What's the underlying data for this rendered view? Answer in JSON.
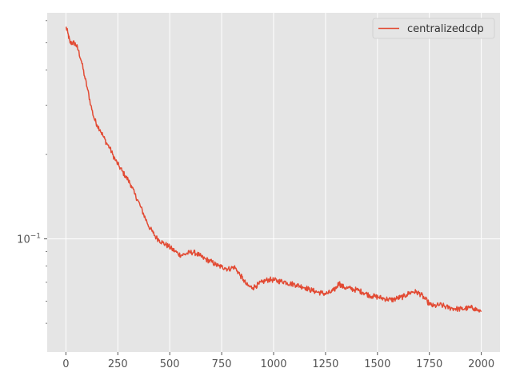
{
  "chart_data": {
    "type": "line",
    "title": "",
    "xlabel": "",
    "ylabel": "",
    "xlim": [
      -90,
      2090
    ],
    "ylim": [
      0.0395,
      0.64
    ],
    "yscale": "log",
    "grid": true,
    "background": "#e5e5e5",
    "legend": {
      "placement": "top-right",
      "entries": [
        "centralizedcdp"
      ]
    },
    "x_ticks": [
      {
        "value": 0,
        "label": "0"
      },
      {
        "value": 250,
        "label": "250"
      },
      {
        "value": 500,
        "label": "500"
      },
      {
        "value": 750,
        "label": "750"
      },
      {
        "value": 1000,
        "label": "1000"
      },
      {
        "value": 1250,
        "label": "1250"
      },
      {
        "value": 1500,
        "label": "1500"
      },
      {
        "value": 1750,
        "label": "1750"
      },
      {
        "value": 2000,
        "label": "2000"
      }
    ],
    "y_major_ticks": [
      {
        "value": 0.1,
        "label": "10",
        "exponent": "−1"
      }
    ],
    "y_minor_ticks": [
      0.05,
      0.06,
      0.07,
      0.08,
      0.09,
      0.2,
      0.3,
      0.4,
      0.5,
      0.6
    ],
    "series": [
      {
        "name": "centralizedcdp",
        "color": "#e24a33",
        "points": [
          [
            0,
            0.57
          ],
          [
            10,
            0.54
          ],
          [
            20,
            0.5
          ],
          [
            30,
            0.5
          ],
          [
            40,
            0.5
          ],
          [
            50,
            0.49
          ],
          [
            60,
            0.47
          ],
          [
            75,
            0.43
          ],
          [
            90,
            0.38
          ],
          [
            105,
            0.34
          ],
          [
            120,
            0.3
          ],
          [
            135,
            0.27
          ],
          [
            150,
            0.255
          ],
          [
            165,
            0.245
          ],
          [
            180,
            0.232
          ],
          [
            195,
            0.22
          ],
          [
            210,
            0.212
          ],
          [
            225,
            0.2
          ],
          [
            240,
            0.19
          ],
          [
            255,
            0.182
          ],
          [
            270,
            0.175
          ],
          [
            285,
            0.168
          ],
          [
            300,
            0.162
          ],
          [
            315,
            0.155
          ],
          [
            330,
            0.145
          ],
          [
            345,
            0.138
          ],
          [
            360,
            0.13
          ],
          [
            375,
            0.122
          ],
          [
            390,
            0.115
          ],
          [
            405,
            0.109
          ],
          [
            420,
            0.105
          ],
          [
            435,
            0.101
          ],
          [
            450,
            0.099
          ],
          [
            465,
            0.097
          ],
          [
            480,
            0.0955
          ],
          [
            495,
            0.094
          ],
          [
            510,
            0.092
          ],
          [
            525,
            0.0905
          ],
          [
            540,
            0.0885
          ],
          [
            555,
            0.0875
          ],
          [
            570,
            0.088
          ],
          [
            585,
            0.0888
          ],
          [
            600,
            0.0895
          ],
          [
            615,
            0.0895
          ],
          [
            630,
            0.0885
          ],
          [
            645,
            0.087
          ],
          [
            660,
            0.0855
          ],
          [
            675,
            0.0845
          ],
          [
            690,
            0.0835
          ],
          [
            705,
            0.0825
          ],
          [
            720,
            0.081
          ],
          [
            735,
            0.08
          ],
          [
            750,
            0.0795
          ],
          [
            765,
            0.079
          ],
          [
            780,
            0.078
          ],
          [
            795,
            0.0785
          ],
          [
            810,
            0.0795
          ],
          [
            825,
            0.077
          ],
          [
            840,
            0.074
          ],
          [
            855,
            0.0715
          ],
          [
            870,
            0.0685
          ],
          [
            885,
            0.0675
          ],
          [
            900,
            0.067
          ],
          [
            915,
            0.068
          ],
          [
            930,
            0.069
          ],
          [
            945,
            0.07
          ],
          [
            960,
            0.071
          ],
          [
            975,
            0.0715
          ],
          [
            990,
            0.0715
          ],
          [
            1005,
            0.0712
          ],
          [
            1020,
            0.0708
          ],
          [
            1035,
            0.0705
          ],
          [
            1050,
            0.0705
          ],
          [
            1065,
            0.0698
          ],
          [
            1080,
            0.0692
          ],
          [
            1095,
            0.069
          ],
          [
            1110,
            0.0685
          ],
          [
            1125,
            0.068
          ],
          [
            1140,
            0.0675
          ],
          [
            1155,
            0.067
          ],
          [
            1170,
            0.066
          ],
          [
            1185,
            0.0655
          ],
          [
            1200,
            0.065
          ],
          [
            1215,
            0.0645
          ],
          [
            1230,
            0.0642
          ],
          [
            1245,
            0.0638
          ],
          [
            1260,
            0.064
          ],
          [
            1275,
            0.0645
          ],
          [
            1290,
            0.0655
          ],
          [
            1305,
            0.0675
          ],
          [
            1315,
            0.07
          ],
          [
            1325,
            0.068
          ],
          [
            1340,
            0.0672
          ],
          [
            1355,
            0.0668
          ],
          [
            1370,
            0.0665
          ],
          [
            1385,
            0.066
          ],
          [
            1400,
            0.0658
          ],
          [
            1415,
            0.0652
          ],
          [
            1430,
            0.0645
          ],
          [
            1445,
            0.0638
          ],
          [
            1460,
            0.063
          ],
          [
            1475,
            0.0625
          ],
          [
            1490,
            0.0622
          ],
          [
            1505,
            0.062
          ],
          [
            1520,
            0.0615
          ],
          [
            1535,
            0.0612
          ],
          [
            1550,
            0.061
          ],
          [
            1565,
            0.0606
          ],
          [
            1580,
            0.0608
          ],
          [
            1595,
            0.0614
          ],
          [
            1610,
            0.0618
          ],
          [
            1625,
            0.0622
          ],
          [
            1640,
            0.0632
          ],
          [
            1655,
            0.0642
          ],
          [
            1670,
            0.0648
          ],
          [
            1685,
            0.0646
          ],
          [
            1700,
            0.064
          ],
          [
            1710,
            0.0632
          ],
          [
            1725,
            0.0615
          ],
          [
            1740,
            0.0598
          ],
          [
            1755,
            0.0582
          ],
          [
            1770,
            0.0576
          ],
          [
            1785,
            0.0578
          ],
          [
            1800,
            0.0582
          ],
          [
            1815,
            0.0578
          ],
          [
            1830,
            0.0572
          ],
          [
            1845,
            0.0568
          ],
          [
            1860,
            0.0566
          ],
          [
            1875,
            0.0564
          ],
          [
            1890,
            0.0562
          ],
          [
            1905,
            0.0562
          ],
          [
            1920,
            0.0564
          ],
          [
            1935,
            0.0566
          ],
          [
            1950,
            0.0568
          ],
          [
            1965,
            0.0566
          ],
          [
            1980,
            0.0558
          ],
          [
            2000,
            0.055
          ]
        ]
      }
    ]
  }
}
